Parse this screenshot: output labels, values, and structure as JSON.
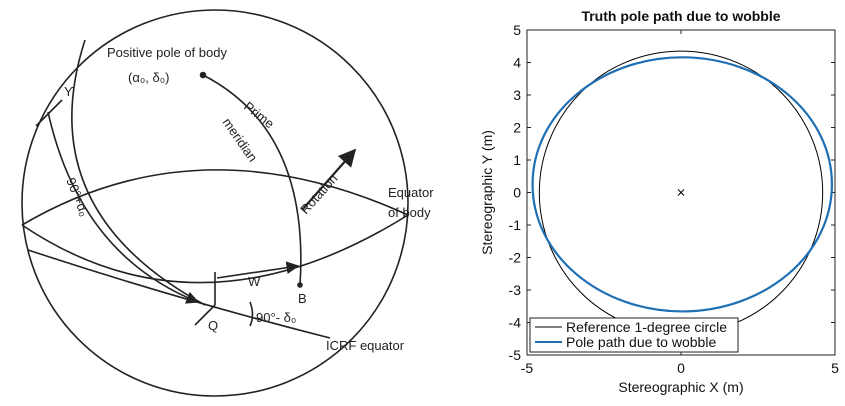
{
  "diagram": {
    "pole_label": "Positive pole of body",
    "pole_coords": "(α₀, δ₀)",
    "meridian_label": [
      "Prime",
      "meridian"
    ],
    "rotation_label": "Rotation",
    "equator_label": [
      "Equator",
      "of body"
    ],
    "vernal_label": "ϒ",
    "arc_label": "90°+α₀",
    "w_label": "W",
    "b_label": "B",
    "q_label": "Q",
    "angle_label": "90°- δ₀",
    "icrf_label": "ICRF equator"
  },
  "chart_data": {
    "type": "line",
    "title": "Truth pole path due to wobble",
    "xlabel": "Stereographic X (m)",
    "ylabel": "Stereographic Y (m)",
    "xlim": [
      -5,
      5
    ],
    "ylim": [
      -5,
      5
    ],
    "xticks": [
      -5,
      0,
      5
    ],
    "yticks": [
      -5,
      -4,
      -3,
      -2,
      -1,
      0,
      1,
      2,
      3,
      4,
      5
    ],
    "legend": "lower left",
    "closed": true,
    "center_marker": {
      "x": 0,
      "y": 0
    },
    "series": [
      {
        "name": "Reference 1-degree circle",
        "color": "#000000",
        "x": [
          4.6,
          4.25,
          3.25,
          1.76,
          0,
          -1.76,
          -3.25,
          -4.25,
          -4.6,
          -4.25,
          -3.25,
          -1.76,
          0,
          1.76,
          3.25,
          4.25
        ],
        "values": [
          0,
          1.66,
          3.08,
          4.02,
          4.35,
          4.02,
          3.08,
          1.66,
          0,
          -1.66,
          -3.08,
          -4.02,
          -4.35,
          -4.02,
          -3.08,
          -1.66
        ]
      },
      {
        "name": "Pole path due to wobble",
        "color": "#1f6fb4",
        "x": [
          4.9,
          4.53,
          3.48,
          1.9,
          0.04,
          -1.82,
          -3.4,
          -4.45,
          -4.82,
          -4.45,
          -3.4,
          -1.82,
          0.04,
          1.9,
          3.48,
          4.53
        ],
        "values": [
          0.25,
          1.75,
          3.01,
          3.86,
          4.16,
          3.86,
          3.01,
          1.75,
          0.25,
          -1.25,
          -2.51,
          -3.36,
          -3.66,
          -3.36,
          -2.51,
          -1.25
        ]
      }
    ]
  }
}
